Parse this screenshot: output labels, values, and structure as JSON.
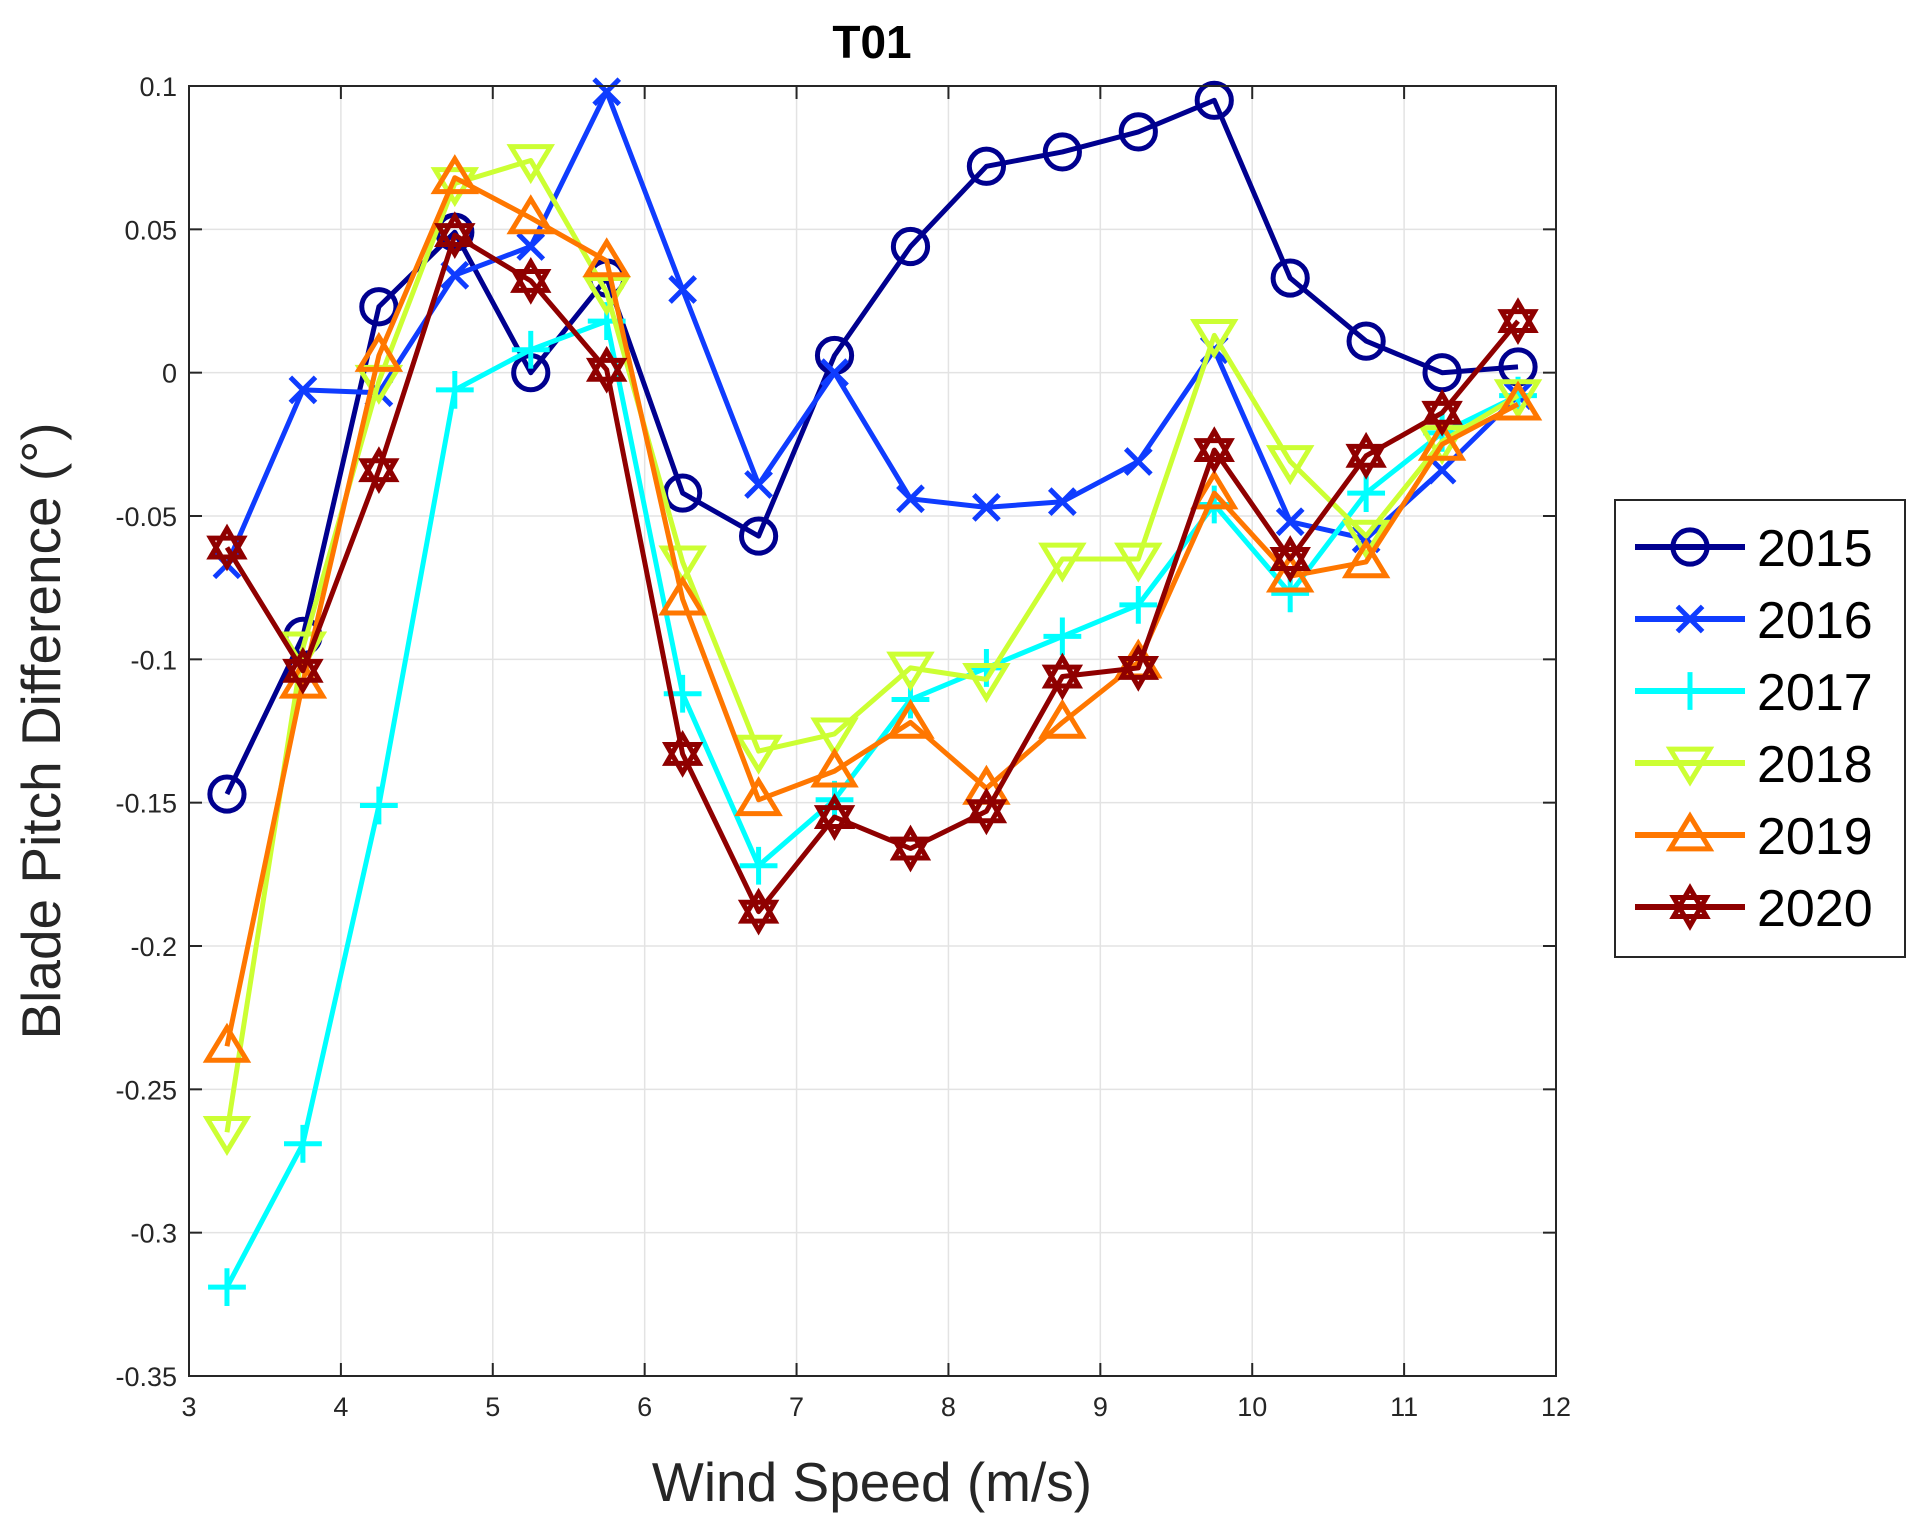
{
  "chart_data": {
    "type": "line",
    "title": "T01",
    "xlabel": "Wind Speed (m/s)",
    "ylabel": "Blade Pitch Difference (°)",
    "xlim": [
      3,
      12
    ],
    "ylim": [
      -0.35,
      0.1
    ],
    "xticks": [
      3,
      4,
      5,
      6,
      7,
      8,
      9,
      10,
      11,
      12
    ],
    "yticks": [
      0.1,
      0.05,
      0,
      -0.05,
      -0.1,
      -0.15,
      -0.2,
      -0.25,
      -0.3,
      -0.35
    ],
    "xtick_labels": [
      "3",
      "4",
      "5",
      "6",
      "7",
      "8",
      "9",
      "10",
      "11",
      "12"
    ],
    "ytick_labels": [
      "0.1",
      "0.05",
      "0",
      "-0.05",
      "-0.1",
      "-0.15",
      "-0.2",
      "-0.25",
      "-0.3",
      "-0.35"
    ],
    "grid": true,
    "legend_position": "outside-right",
    "x": [
      3.25,
      3.75,
      4.25,
      4.75,
      5.25,
      5.75,
      6.25,
      6.75,
      7.25,
      7.75,
      8.25,
      8.75,
      9.25,
      9.75,
      10.25,
      10.75,
      11.25,
      11.75
    ],
    "series": [
      {
        "name": "2015",
        "color": "#00008f",
        "marker": "circle",
        "values": [
          -0.147,
          -0.092,
          0.023,
          0.049,
          0.0,
          0.033,
          -0.042,
          -0.057,
          0.006,
          0.044,
          0.072,
          0.077,
          0.084,
          0.095,
          0.033,
          0.011,
          0.0,
          0.002
        ]
      },
      {
        "name": "2016",
        "color": "#0f3cff",
        "marker": "x",
        "values": [
          -0.067,
          -0.006,
          -0.007,
          0.034,
          0.044,
          0.098,
          0.029,
          -0.039,
          0.0,
          -0.044,
          -0.047,
          -0.045,
          -0.031,
          0.008,
          -0.052,
          -0.058,
          -0.034,
          -0.008
        ]
      },
      {
        "name": "2017",
        "color": "#00ffff",
        "marker": "plus",
        "values": [
          -0.319,
          -0.269,
          -0.151,
          -0.006,
          0.008,
          0.018,
          -0.112,
          -0.172,
          -0.149,
          -0.114,
          -0.103,
          -0.092,
          -0.081,
          -0.046,
          -0.077,
          -0.042,
          -0.021,
          -0.008
        ]
      },
      {
        "name": "2018",
        "color": "#ccff33",
        "marker": "triangle-down",
        "values": [
          -0.265,
          -0.096,
          -0.003,
          0.066,
          0.074,
          0.028,
          -0.066,
          -0.132,
          -0.126,
          -0.103,
          -0.107,
          -0.065,
          -0.065,
          0.013,
          -0.031,
          -0.057,
          -0.024,
          -0.008
        ]
      },
      {
        "name": "2019",
        "color": "#ff7700",
        "marker": "triangle-up",
        "values": [
          -0.235,
          -0.108,
          0.006,
          0.068,
          0.054,
          0.039,
          -0.079,
          -0.149,
          -0.139,
          -0.122,
          -0.145,
          -0.122,
          -0.101,
          -0.042,
          -0.071,
          -0.066,
          -0.025,
          -0.011
        ]
      },
      {
        "name": "2020",
        "color": "#8f0000",
        "marker": "hexagram",
        "values": [
          -0.061,
          -0.104,
          -0.034,
          0.048,
          0.032,
          0.001,
          -0.133,
          -0.188,
          -0.155,
          -0.166,
          -0.153,
          -0.106,
          -0.103,
          -0.027,
          -0.065,
          -0.029,
          -0.014,
          0.018
        ]
      }
    ]
  }
}
